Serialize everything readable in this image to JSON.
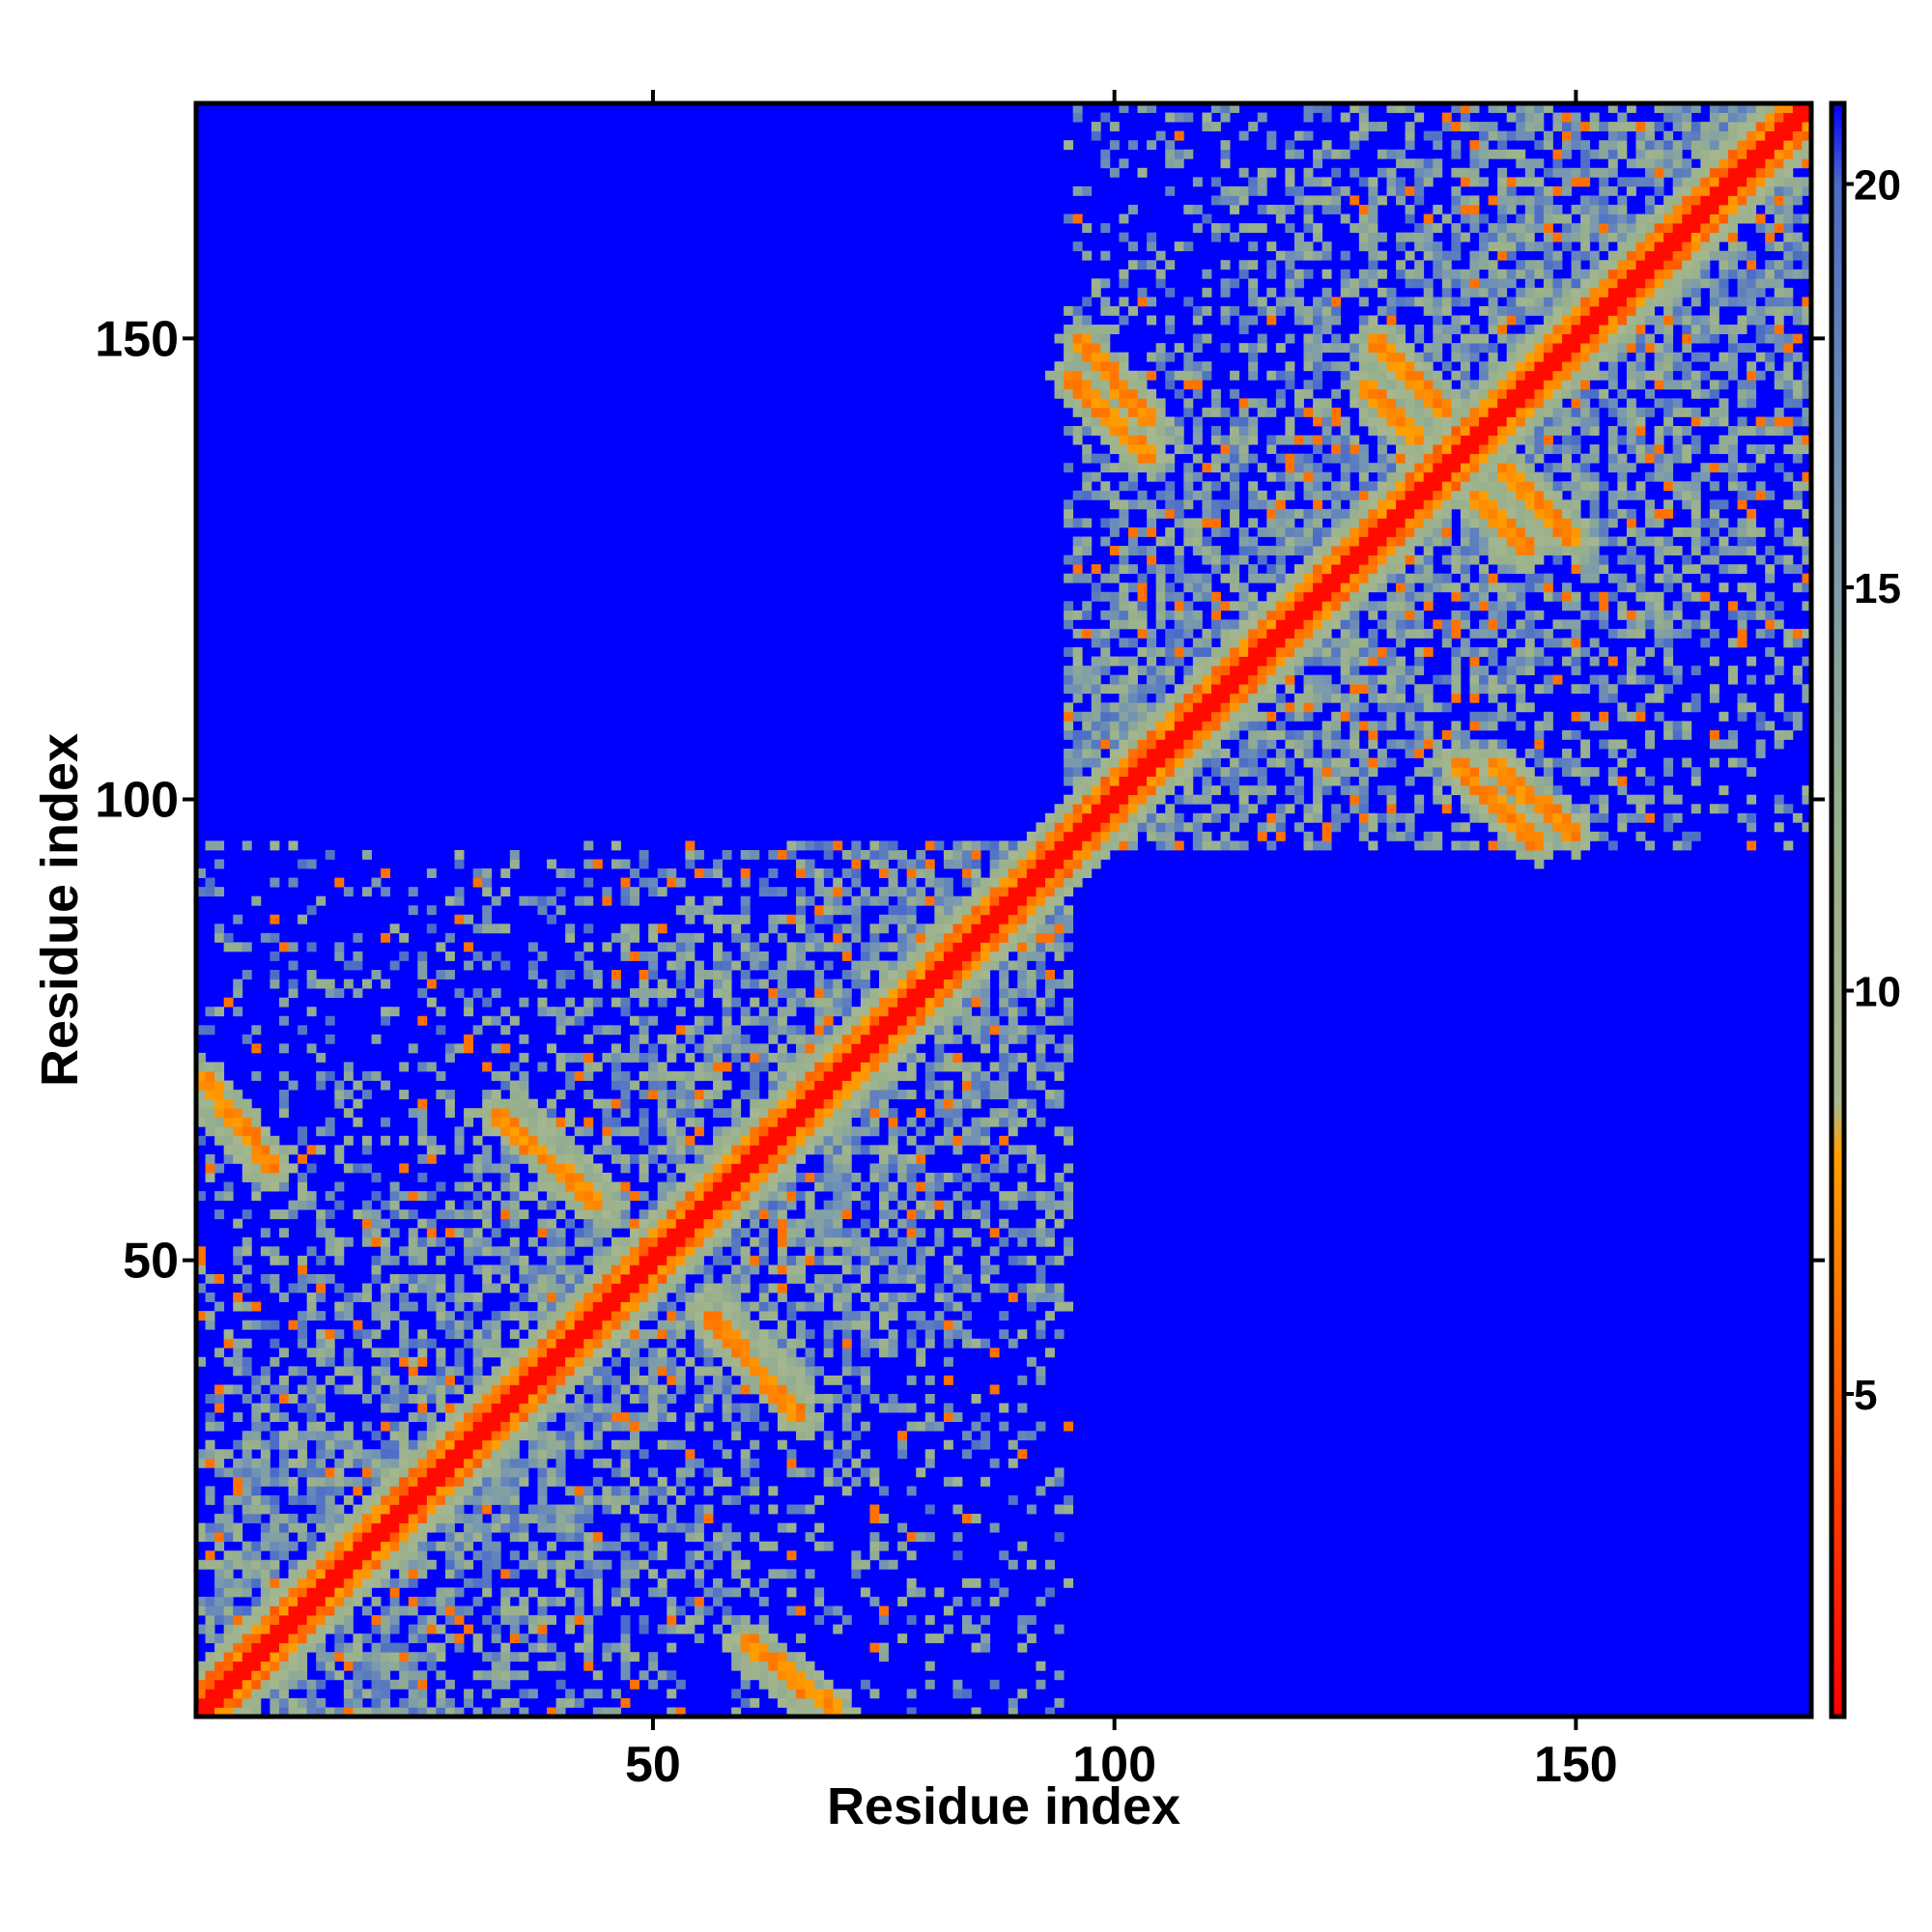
{
  "chart_data": {
    "type": "heatmap",
    "xlabel": "Residue index",
    "ylabel": "Residue index",
    "xlim": [
      1,
      175
    ],
    "ylim": [
      1,
      175
    ],
    "x_ticks": [
      50,
      100,
      150
    ],
    "y_ticks": [
      50,
      100,
      150
    ],
    "colorbar": {
      "range": [
        1,
        21
      ],
      "ticks": [
        5,
        10,
        15,
        20
      ],
      "stops": [
        {
          "value": 1,
          "color": "#ff0000"
        },
        {
          "value": 5,
          "color": "#ff5a00"
        },
        {
          "value": 8,
          "color": "#ffa000"
        },
        {
          "value": 8.6,
          "color": "#a8b890"
        },
        {
          "value": 12,
          "color": "#98b08c"
        },
        {
          "value": 16,
          "color": "#7898b0"
        },
        {
          "value": 20,
          "color": "#4a6cc8"
        },
        {
          "value": 21,
          "color": "#0000ff"
        }
      ]
    },
    "background_value": 21,
    "description_model": {
      "diagonal_band": {
        "width_residues": 4,
        "value": 2
      },
      "domains": [
        {
          "x": [
            1,
            95
          ],
          "y": [
            1,
            95
          ],
          "density": "medium"
        },
        {
          "x": [
            95,
            175
          ],
          "y": [
            95,
            175
          ],
          "density": "high"
        }
      ],
      "antiparallel_contacts": [
        {
          "from": [
            1,
            70
          ],
          "to": [
            9,
            60
          ],
          "value": 6
        },
        {
          "from": [
            33,
            66
          ],
          "to": [
            44,
            56
          ],
          "value": 6
        },
        {
          "from": [
            56,
            45
          ],
          "to": [
            66,
            35
          ],
          "value": 6
        },
        {
          "from": [
            60,
            8
          ],
          "to": [
            68,
            1
          ],
          "value": 6
        },
        {
          "from": [
            96,
            150
          ],
          "to": [
            104,
            141
          ],
          "value": 6
        },
        {
          "from": [
            128,
            150
          ],
          "to": [
            138,
            140
          ],
          "value": 6
        },
        {
          "from": [
            135,
            137
          ],
          "to": [
            145,
            127
          ],
          "value": 6
        },
        {
          "from": [
            137,
            104
          ],
          "to": [
            146,
            95
          ],
          "value": 6
        }
      ]
    }
  }
}
